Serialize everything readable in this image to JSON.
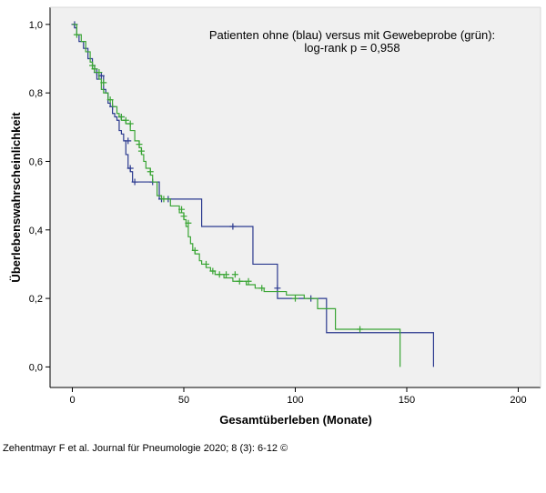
{
  "chart_data": {
    "type": "line",
    "subtype": "kaplan-meier step curves",
    "annotation_lines": [
      "Patienten ohne (blau) versus mit Gewebeprobe (grün):",
      "log-rank p = 0,958"
    ],
    "xlabel": "Gesamtüberleben (Monate)",
    "ylabel": "Überlebenswahrscheinlichkeit",
    "xlim": [
      -10,
      210
    ],
    "ylim": [
      -0.06,
      1.05
    ],
    "x_ticks": [
      0,
      50,
      100,
      150,
      200
    ],
    "x_tick_labels": [
      "0",
      "50",
      "100",
      "150",
      "200"
    ],
    "y_ticks": [
      0.0,
      0.2,
      0.4,
      0.6,
      0.8,
      1.0
    ],
    "y_tick_labels": [
      "0,0",
      "0,2",
      "0,4",
      "0,6",
      "0,8",
      "1,0"
    ],
    "grid": false,
    "colors": {
      "background": "#f0f0f0",
      "axis": "#000000",
      "blue": "#2b3a8f",
      "green": "#3aa535"
    },
    "series": [
      {
        "name": "ohne Gewebeprobe (blau)",
        "color": "#2b3a8f",
        "x": [
          0,
          1,
          2,
          3,
          5,
          7,
          9,
          10,
          11,
          12,
          14,
          15,
          16,
          17,
          18,
          19,
          20,
          21,
          22,
          23,
          24,
          25,
          26,
          27,
          38,
          39,
          58,
          81,
          92,
          106,
          114,
          162,
          162
        ],
        "y": [
          1.0,
          0.99,
          0.97,
          0.95,
          0.93,
          0.9,
          0.88,
          0.86,
          0.84,
          0.85,
          0.81,
          0.8,
          0.77,
          0.76,
          0.74,
          0.73,
          0.72,
          0.69,
          0.68,
          0.66,
          0.62,
          0.58,
          0.57,
          0.54,
          0.54,
          0.49,
          0.41,
          0.3,
          0.2,
          0.2,
          0.1,
          0.1,
          0.0
        ],
        "censored": [
          {
            "x": 1,
            "y": 1.0
          },
          {
            "x": 11,
            "y": 0.86
          },
          {
            "x": 13,
            "y": 0.85
          },
          {
            "x": 18,
            "y": 0.76
          },
          {
            "x": 22,
            "y": 0.73
          },
          {
            "x": 25,
            "y": 0.66
          },
          {
            "x": 26,
            "y": 0.58
          },
          {
            "x": 28,
            "y": 0.54
          },
          {
            "x": 36,
            "y": 0.54
          },
          {
            "x": 40,
            "y": 0.49
          },
          {
            "x": 43,
            "y": 0.49
          },
          {
            "x": 72,
            "y": 0.41
          },
          {
            "x": 92,
            "y": 0.23
          },
          {
            "x": 107,
            "y": 0.2
          }
        ]
      },
      {
        "name": "mit Gewebeprobe (grün)",
        "color": "#3aa535",
        "x": [
          0,
          2,
          4,
          6,
          8,
          9,
          10,
          12,
          13,
          14,
          16,
          18,
          20,
          21,
          22,
          24,
          26,
          28,
          30,
          31,
          32,
          33,
          35,
          36,
          38,
          40,
          44,
          48,
          50,
          51,
          52,
          53,
          54,
          55,
          57,
          58,
          60,
          62,
          64,
          68,
          72,
          78,
          82,
          86,
          96,
          104,
          110,
          118,
          147,
          147
        ],
        "y": [
          1.0,
          0.97,
          0.95,
          0.92,
          0.89,
          0.87,
          0.86,
          0.84,
          0.81,
          0.8,
          0.78,
          0.76,
          0.74,
          0.73,
          0.72,
          0.71,
          0.69,
          0.66,
          0.64,
          0.62,
          0.6,
          0.58,
          0.56,
          0.54,
          0.5,
          0.49,
          0.47,
          0.45,
          0.43,
          0.41,
          0.38,
          0.36,
          0.34,
          0.33,
          0.31,
          0.3,
          0.29,
          0.28,
          0.27,
          0.26,
          0.25,
          0.24,
          0.23,
          0.22,
          0.21,
          0.2,
          0.17,
          0.11,
          0.11,
          0.0
        ],
        "censored": [
          {
            "x": 2,
            "y": 0.97
          },
          {
            "x": 9,
            "y": 0.88
          },
          {
            "x": 10,
            "y": 0.87
          },
          {
            "x": 12,
            "y": 0.86
          },
          {
            "x": 14,
            "y": 0.83
          },
          {
            "x": 17,
            "y": 0.78
          },
          {
            "x": 22,
            "y": 0.73
          },
          {
            "x": 24,
            "y": 0.72
          },
          {
            "x": 26,
            "y": 0.71
          },
          {
            "x": 30,
            "y": 0.65
          },
          {
            "x": 31,
            "y": 0.63
          },
          {
            "x": 35,
            "y": 0.57
          },
          {
            "x": 41,
            "y": 0.49
          },
          {
            "x": 49,
            "y": 0.46
          },
          {
            "x": 50,
            "y": 0.44
          },
          {
            "x": 52,
            "y": 0.42
          },
          {
            "x": 55,
            "y": 0.34
          },
          {
            "x": 60,
            "y": 0.3
          },
          {
            "x": 63,
            "y": 0.28
          },
          {
            "x": 66,
            "y": 0.27
          },
          {
            "x": 69,
            "y": 0.27
          },
          {
            "x": 73,
            "y": 0.27
          },
          {
            "x": 75,
            "y": 0.25
          },
          {
            "x": 79,
            "y": 0.25
          },
          {
            "x": 85,
            "y": 0.23
          },
          {
            "x": 100,
            "y": 0.2
          },
          {
            "x": 129,
            "y": 0.11
          }
        ]
      }
    ]
  },
  "citation": "Zehentmayr F et al. Journal für Pneumologie 2020; 8 (3): 6-12 ©"
}
